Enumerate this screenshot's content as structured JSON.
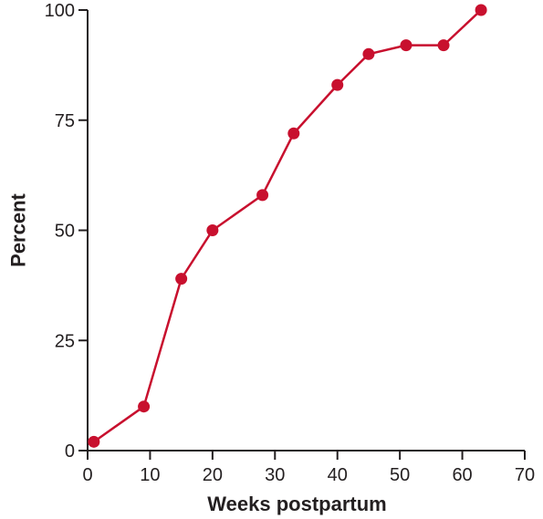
{
  "chart_data": {
    "type": "line",
    "title": "",
    "xlabel": "Weeks postpartum",
    "ylabel": "Percent",
    "xlim": [
      0,
      70
    ],
    "ylim": [
      0,
      100
    ],
    "xticks": [
      0,
      10,
      20,
      30,
      40,
      50,
      60,
      70
    ],
    "yticks": [
      0,
      25,
      50,
      75,
      100
    ],
    "xtick_labels": [
      "0",
      "10",
      "20",
      "30",
      "40",
      "50",
      "60",
      "70"
    ],
    "ytick_labels": [
      "0",
      "25",
      "50",
      "75",
      "100"
    ],
    "grid": false,
    "legend": "none",
    "series": [
      {
        "color": "#c8102e",
        "x": [
          1,
          9,
          15,
          20,
          28,
          33,
          40,
          45,
          51,
          57,
          63
        ],
        "y": [
          2,
          10,
          39,
          50,
          58,
          72,
          83,
          90,
          92,
          92,
          100
        ]
      }
    ]
  }
}
